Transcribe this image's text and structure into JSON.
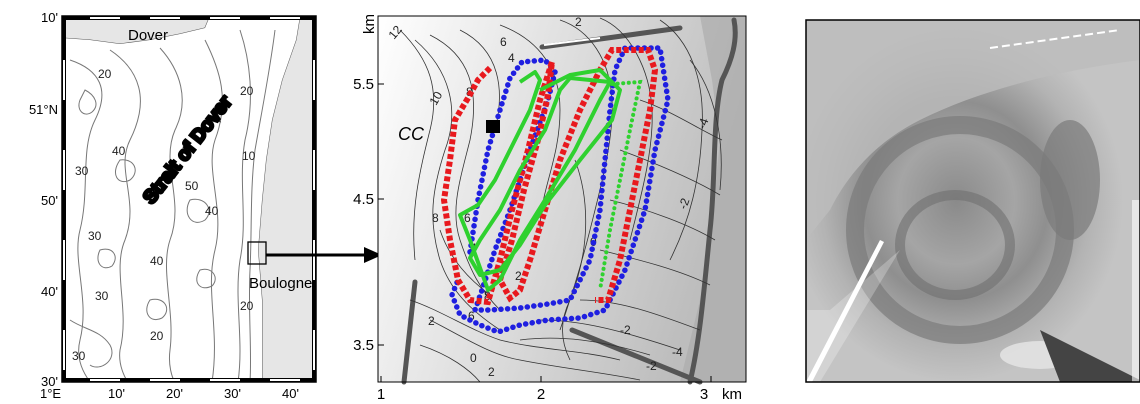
{
  "left_map": {
    "title": "Strait of Dover",
    "places": {
      "dover": "Dover",
      "boulogne": "Boulogne"
    },
    "lat_ticks": {
      "top": "10'",
      "mid": "51°N",
      "t50": "50'",
      "t40": "40'",
      "bottom": "30'"
    },
    "lon_ticks": [
      "1°E",
      "10'",
      "20'",
      "30'",
      "40'"
    ],
    "depth_labels": [
      "20",
      "40",
      "30",
      "50",
      "40",
      "30",
      "40",
      "20",
      "10",
      "30",
      "20",
      "20",
      "30"
    ]
  },
  "mid_map": {
    "y_unit": "km",
    "y_ticks": [
      "5.5",
      "4.5",
      "3.5"
    ],
    "x_ticks": [
      "1",
      "2",
      "3"
    ],
    "x_unit": "km",
    "annotation": "CC",
    "contour_labels": [
      "12",
      "8",
      "10",
      "6",
      "4",
      "2",
      "8",
      "4",
      "6",
      "2",
      "8",
      "6",
      "2",
      "0",
      "-4",
      "-2",
      "-2",
      "-2",
      "-4",
      "0",
      "2"
    ],
    "track_colors": {
      "red": "#e8191e",
      "blue": "#1f1fe0",
      "green": "#2fd12f",
      "station": "#000000"
    }
  },
  "right_panel": {
    "type": "grayscale image"
  }
}
